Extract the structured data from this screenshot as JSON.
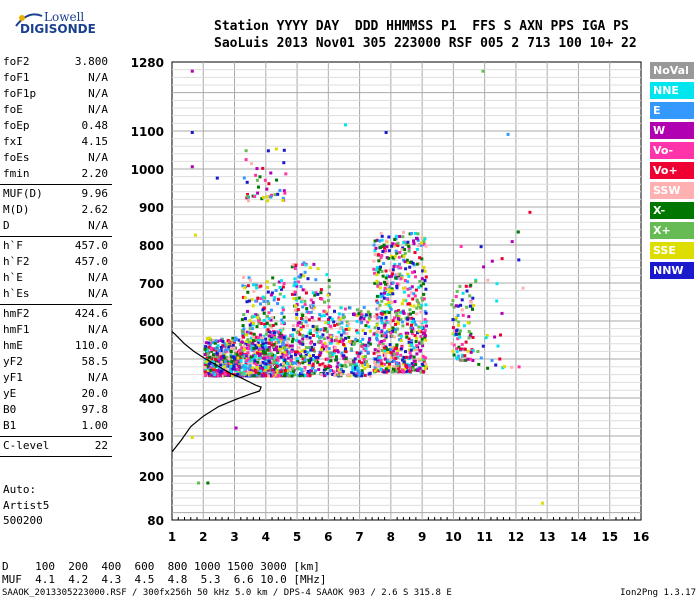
{
  "logo": {
    "line1": "Lowell",
    "line2": "DIGISONDE"
  },
  "header": {
    "line1": "Station YYYY DAY  DDD HHMMSS P1  FFS S AXN PPS IGA PS",
    "line2": "SaoLuis 2013 Nov01 305 223000 RSF 005 2 713 100 10+ 22"
  },
  "params": [
    {
      "label": "foF2",
      "value": "3.800"
    },
    {
      "label": "foF1",
      "value": "N/A"
    },
    {
      "label": "foF1p",
      "value": "N/A"
    },
    {
      "label": "foE",
      "value": "N/A"
    },
    {
      "label": "foEp",
      "value": "0.48"
    },
    {
      "label": "fxI",
      "value": "4.15"
    },
    {
      "label": "foEs",
      "value": "N/A"
    },
    {
      "label": "fmin",
      "value": "2.20"
    },
    {
      "sep": true
    },
    {
      "label": "MUF(D)",
      "value": "9.96"
    },
    {
      "label": "M(D)",
      "value": "2.62"
    },
    {
      "label": "D",
      "value": "N/A"
    },
    {
      "sep": true
    },
    {
      "label": "h`F",
      "value": "457.0"
    },
    {
      "label": "h`F2",
      "value": "457.0"
    },
    {
      "label": "h`E",
      "value": "N/A"
    },
    {
      "label": "h`Es",
      "value": "N/A"
    },
    {
      "sep": true
    },
    {
      "label": "hmF2",
      "value": "424.6"
    },
    {
      "label": "hmF1",
      "value": "N/A"
    },
    {
      "label": "hmE",
      "value": "110.0"
    },
    {
      "label": "yF2",
      "value": "58.5"
    },
    {
      "label": "yF1",
      "value": "N/A"
    },
    {
      "label": "yE",
      "value": "20.0"
    },
    {
      "label": "B0",
      "value": "97.8"
    },
    {
      "label": "B1",
      "value": "1.00"
    },
    {
      "sep": true
    },
    {
      "label": "C-level",
      "value": "22"
    },
    {
      "sep": true
    }
  ],
  "auto": {
    "line1": "Auto:",
    "line2": "Artist5",
    "line3": "500200"
  },
  "legend": [
    {
      "label": "NoVal",
      "color": "#999999"
    },
    {
      "label": "NNE",
      "color": "#00e5ee"
    },
    {
      "label": "E",
      "color": "#3399ff"
    },
    {
      "label": "W",
      "color": "#b000b0"
    },
    {
      "label": "Vo-",
      "color": "#ff33aa"
    },
    {
      "label": "Vo+",
      "color": "#ee0033"
    },
    {
      "label": "SSW",
      "color": "#ffb0b0"
    },
    {
      "label": "X-",
      "color": "#007700"
    },
    {
      "label": "X+",
      "color": "#66bb55"
    },
    {
      "label": "SSE",
      "color": "#dddd00"
    },
    {
      "label": "NNW",
      "color": "#1a1acc"
    }
  ],
  "freq_table": {
    "row1": "D    100  200  400  600  800 1000 1500 3000 [km]",
    "row2": "MUF  4.1  4.2  4.3  4.5  4.8  5.3  6.6 10.0 [MHz]"
  },
  "footer": "SAAOK_2013305223000.RSF / 300fx256h 50 kHz 5.0 km / DPS-4 SAAOK 903 / 2.6 S 315.8 E",
  "version": "Ion2Png 1.3.17",
  "chart_data": {
    "type": "scatter",
    "title": "",
    "xlabel": "",
    "ylabel": "",
    "xlim": [
      1,
      16
    ],
    "ylim": [
      80,
      1280
    ],
    "xticks": [
      1,
      2,
      3,
      4,
      5,
      6,
      7,
      8,
      9,
      10,
      11,
      12,
      13,
      14,
      15,
      16
    ],
    "yticks": [
      80,
      200,
      300,
      400,
      500,
      600,
      700,
      800,
      900,
      1000,
      1100,
      1280
    ],
    "grid": true,
    "series": [
      {
        "name": "trace",
        "values": [
          [
            1.0,
            260
          ],
          [
            1.3,
            290
          ],
          [
            1.6,
            325
          ],
          [
            2.0,
            352
          ],
          [
            2.5,
            378
          ],
          [
            3.0,
            395
          ],
          [
            3.5,
            410
          ],
          [
            3.8,
            418
          ],
          [
            3.85,
            428
          ],
          [
            3.7,
            432
          ],
          [
            3.5,
            440
          ],
          [
            3.2,
            452
          ],
          [
            2.9,
            462
          ],
          [
            2.6,
            476
          ],
          [
            2.3,
            490
          ],
          [
            2.0,
            504
          ],
          [
            1.7,
            520
          ],
          [
            1.4,
            540
          ],
          [
            1.1,
            565
          ],
          [
            1.0,
            572
          ]
        ]
      }
    ],
    "clusters": [
      {
        "x": [
          2.0,
          4.7
        ],
        "y": [
          460,
          560
        ],
        "n": 900
      },
      {
        "x": [
          3.2,
          4.6
        ],
        "y": [
          560,
          720
        ],
        "n": 160
      },
      {
        "x": [
          3.2,
          4.6
        ],
        "y": [
          920,
          1070
        ],
        "n": 45
      },
      {
        "x": [
          4.7,
          7.3
        ],
        "y": [
          460,
          640
        ],
        "n": 500
      },
      {
        "x": [
          4.8,
          6.0
        ],
        "y": [
          640,
          760
        ],
        "n": 70
      },
      {
        "x": [
          7.4,
          9.1
        ],
        "y": [
          470,
          840
        ],
        "n": 650
      },
      {
        "x": [
          9.9,
          10.6
        ],
        "y": [
          500,
          700
        ],
        "n": 90
      },
      {
        "x": [
          10.6,
          12.2
        ],
        "y": [
          480,
          840
        ],
        "n": 30
      }
    ]
  }
}
